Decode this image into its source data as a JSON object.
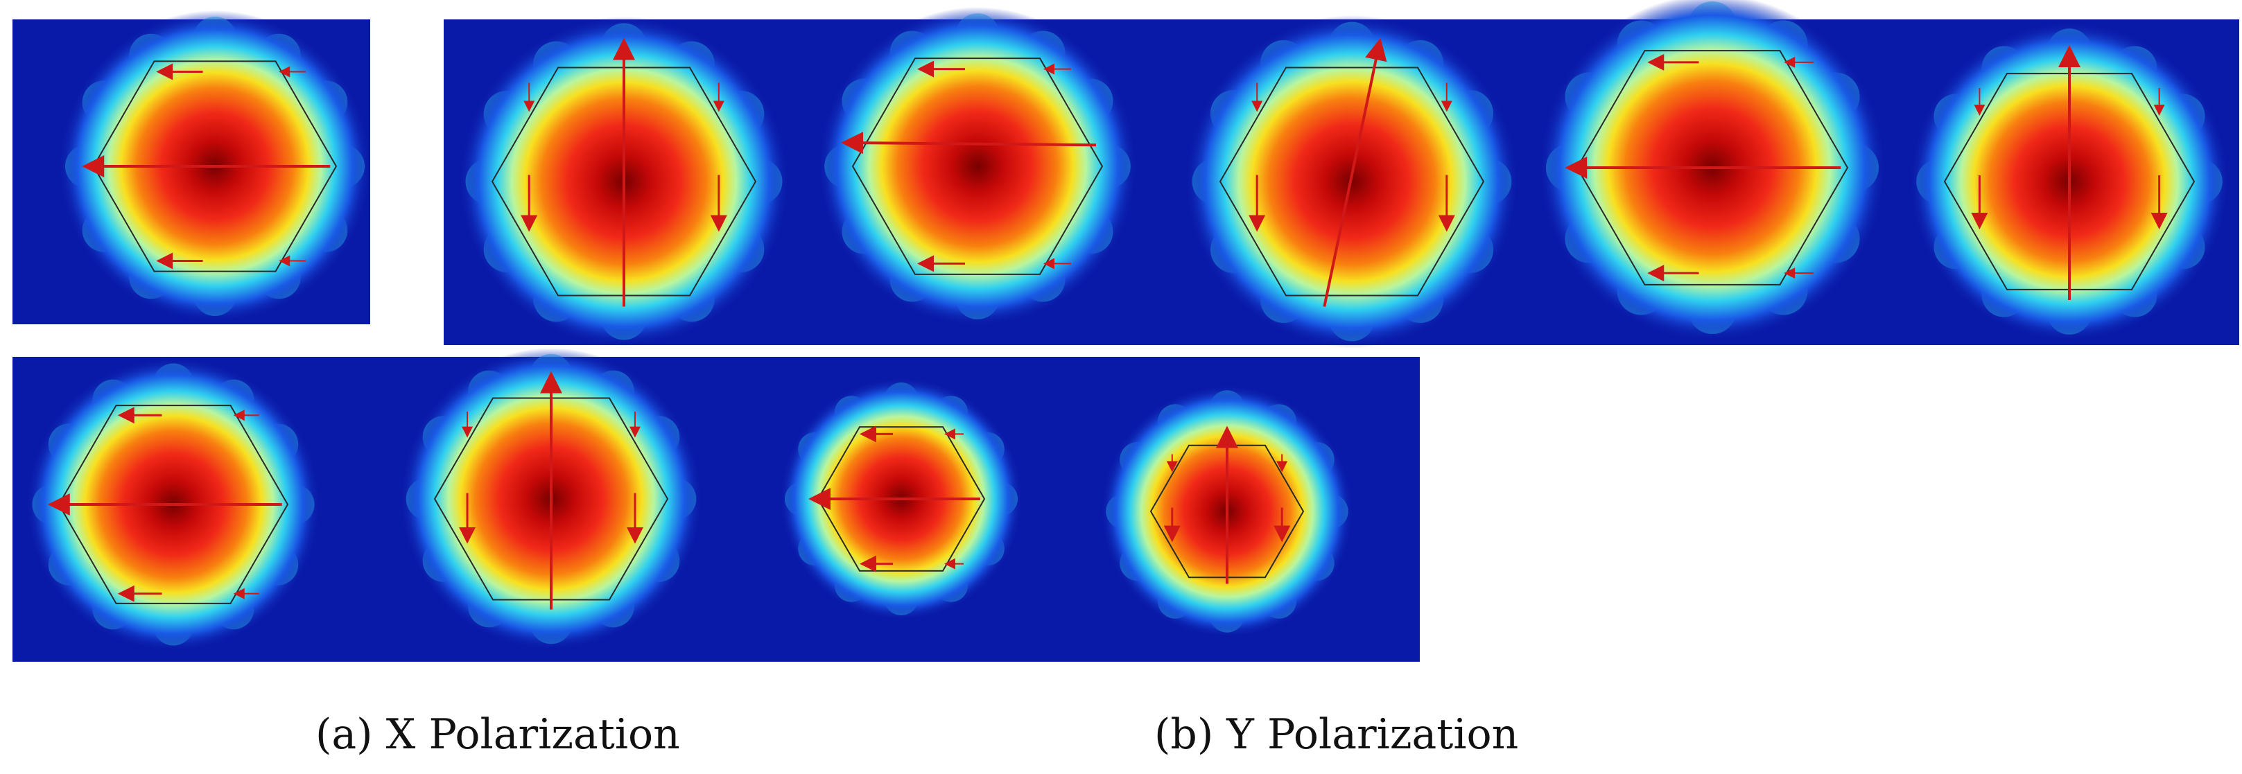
{
  "figure": {
    "caption_a": "(a) X Polarization",
    "caption_b": "(b) Y Polarization",
    "colormap": [
      "#0a1aa8",
      "#1a5ae6",
      "#20c8f0",
      "#b8f5a0",
      "#f8f020",
      "#f89010",
      "#e81818",
      "#780000"
    ],
    "arrow_color": "#d01818",
    "hexagon_color": "#2a2a2a",
    "row1_panels": [
      {
        "mode": "fundamental",
        "polarization": "x"
      },
      {
        "mode": "fundamental",
        "polarization": "y"
      },
      {
        "mode": "fundamental",
        "polarization": "x-tilted"
      },
      {
        "mode": "fundamental",
        "polarization": "y-tilted"
      },
      {
        "mode": "fundamental",
        "polarization": "x"
      },
      {
        "mode": "fundamental",
        "polarization": "y"
      }
    ],
    "row2_panels": [
      {
        "mode": "fundamental",
        "polarization": "x"
      },
      {
        "mode": "fundamental",
        "polarization": "y"
      },
      {
        "mode": "fundamental-small-core",
        "polarization": "x"
      },
      {
        "mode": "fundamental-small-core",
        "polarization": "y"
      }
    ]
  }
}
